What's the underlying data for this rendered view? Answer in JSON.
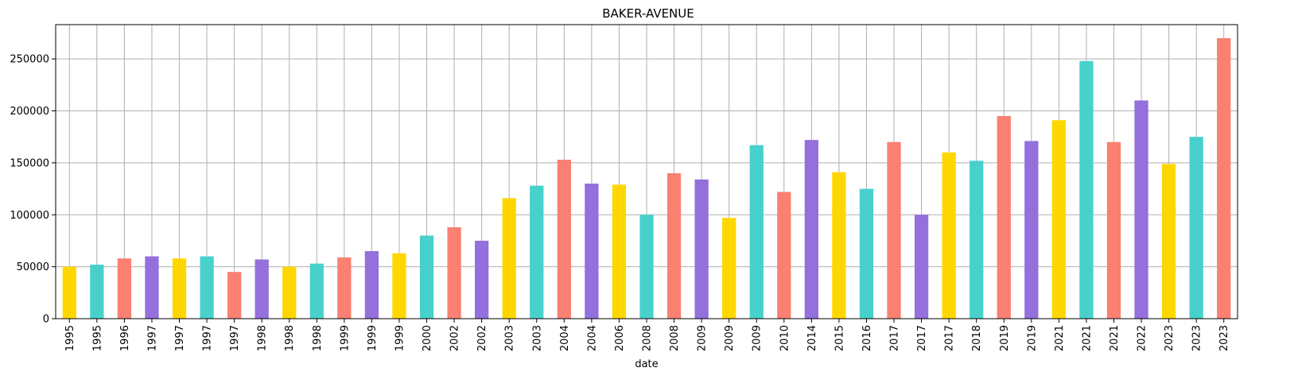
{
  "chart_data": {
    "type": "bar",
    "title": "BAKER-AVENUE",
    "xlabel": "date",
    "ylabel": "",
    "ylim": [
      0,
      283000
    ],
    "yticks": [
      0,
      50000,
      100000,
      150000,
      200000,
      250000
    ],
    "grid": true,
    "legend": "none",
    "palette": [
      "#FFD700",
      "#48D1CC",
      "#FA8072",
      "#9370DB"
    ],
    "categories": [
      "1995",
      "1995",
      "1996",
      "1997",
      "1997",
      "1997",
      "1997",
      "1998",
      "1998",
      "1998",
      "1999",
      "1999",
      "1999",
      "2000",
      "2002",
      "2002",
      "2003",
      "2003",
      "2004",
      "2004",
      "2006",
      "2008",
      "2008",
      "2009",
      "2009",
      "2009",
      "2010",
      "2014",
      "2015",
      "2016",
      "2017",
      "2017",
      "2017",
      "2018",
      "2019",
      "2019",
      "2021",
      "2021",
      "2021",
      "2022",
      "2023",
      "2023",
      "2023"
    ],
    "values": [
      50000,
      52000,
      58000,
      60000,
      58000,
      60000,
      45000,
      57000,
      50000,
      53000,
      59000,
      65000,
      63000,
      80000,
      88000,
      75000,
      116000,
      128000,
      153000,
      130000,
      129000,
      100000,
      140000,
      134000,
      97000,
      167000,
      122000,
      172000,
      141000,
      125000,
      170000,
      100000,
      160000,
      152000,
      195000,
      171000,
      191000,
      248000,
      170000,
      210000,
      149000,
      175000,
      270000
    ],
    "colors": [
      "#FFD700",
      "#48D1CC",
      "#FA8072",
      "#9370DB",
      "#FFD700",
      "#48D1CC",
      "#FA8072",
      "#9370DB",
      "#FFD700",
      "#48D1CC",
      "#FA8072",
      "#9370DB",
      "#FFD700",
      "#48D1CC",
      "#FA8072",
      "#9370DB",
      "#FFD700",
      "#48D1CC",
      "#FA8072",
      "#9370DB",
      "#FFD700",
      "#48D1CC",
      "#FA8072",
      "#9370DB",
      "#FFD700",
      "#48D1CC",
      "#FA8072",
      "#9370DB",
      "#FFD700",
      "#48D1CC",
      "#FA8072",
      "#9370DB",
      "#FFD700",
      "#48D1CC",
      "#FA8072",
      "#9370DB",
      "#FFD700",
      "#48D1CC",
      "#FA8072",
      "#9370DB",
      "#FFD700",
      "#48D1CC",
      "#FA8072"
    ]
  }
}
